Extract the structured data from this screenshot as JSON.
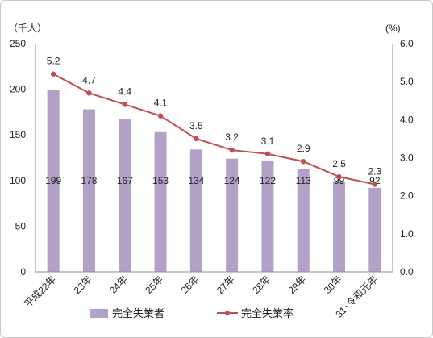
{
  "chart_data": {
    "type": "bar+line",
    "categories": [
      "平成22年",
      "23年",
      "24年",
      "25年",
      "26年",
      "27年",
      "28年",
      "29年",
      "30年",
      "31･令和元年"
    ],
    "bar_series": {
      "name": "完全失業者",
      "values": [
        199,
        178,
        167,
        153,
        134,
        124,
        122,
        113,
        99,
        92
      ],
      "color": "#b3a2c7"
    },
    "line_series": {
      "name": "完全失業率",
      "values": [
        5.2,
        4.7,
        4.4,
        4.1,
        3.5,
        3.2,
        3.1,
        2.9,
        2.5,
        2.3
      ],
      "color": "#c0504d"
    },
    "y_left": {
      "label": "（千人）",
      "range": [
        0,
        250
      ],
      "ticks": [
        "0",
        "50",
        "100",
        "150",
        "200",
        "250"
      ]
    },
    "y_right": {
      "label": "(%)",
      "range": [
        0.0,
        6.0
      ],
      "ticks": [
        "0.0",
        "1.0",
        "2.0",
        "3.0",
        "4.0",
        "5.0",
        "6.0"
      ]
    },
    "bar_labels": [
      "199",
      "178",
      "167",
      "153",
      "134",
      "124",
      "122",
      "113",
      "99",
      "92"
    ],
    "line_labels": [
      "5.2",
      "4.7",
      "4.4",
      "4.1",
      "3.5",
      "3.2",
      "3.1",
      "2.9",
      "2.5",
      "2.3"
    ],
    "legend": {
      "placement": "bottom",
      "items": [
        "完全失業者",
        "完全失業率"
      ]
    },
    "grid": false
  }
}
